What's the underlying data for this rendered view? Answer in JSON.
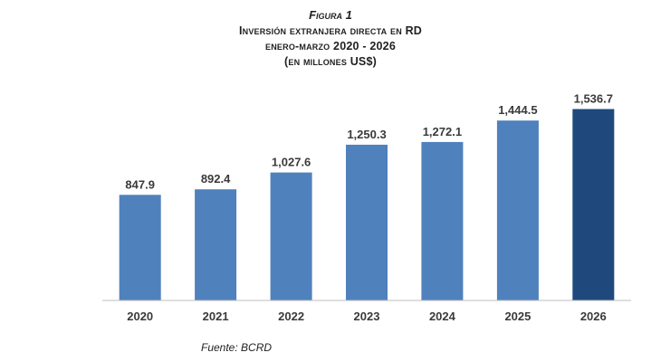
{
  "figure_label": "Figura 1",
  "title_lines": [
    "Inversión extranjera directa en RD",
    "enero-marzo 2020 - 2026",
    "(en millones US$)"
  ],
  "source": "Fuente: BCRD",
  "chart_data": {
    "type": "bar",
    "categories": [
      "2020",
      "2021",
      "2022",
      "2023",
      "2024",
      "2025",
      "2026"
    ],
    "values": [
      847.9,
      892.4,
      1027.6,
      1250.3,
      1272.1,
      1444.5,
      1536.7
    ],
    "value_labels": [
      "847.9",
      "892.4",
      "1,027.6",
      "1,250.3",
      "1,272.1",
      "1,444.5",
      "1,536.7"
    ],
    "title": "Inversión extranjera directa en RD",
    "xlabel": "",
    "ylabel": "",
    "ylim": [
      0,
      1700
    ],
    "grid": false,
    "legend": "none",
    "colors": {
      "default_bar": "#4f81bd",
      "highlight_bar": "#1f497d",
      "axis": "#bfbfbf",
      "text": "#3a3a3a"
    },
    "highlight_category": "2026"
  }
}
